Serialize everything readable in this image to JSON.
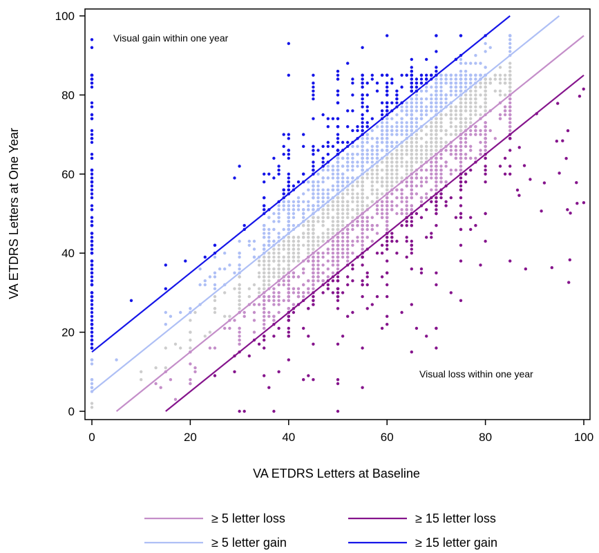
{
  "chart_data": {
    "type": "scatter",
    "xlabel": "VA ETDRS Letters at Baseline",
    "ylabel": "VA ETDRS Letters at One Year",
    "xlim": [
      0,
      100
    ],
    "ylim": [
      0,
      100
    ],
    "xticks": [
      0,
      20,
      40,
      60,
      80,
      100
    ],
    "yticks": [
      0,
      20,
      40,
      60,
      80,
      100
    ],
    "grid": false,
    "legend_position": "bottom",
    "annotations": [
      {
        "text": "Visual gain within one year",
        "x": 9,
        "y": 94
      },
      {
        "text": "Visual loss within one year",
        "x": 66,
        "y": 9
      }
    ],
    "point_groups": [
      {
        "key": "gain15",
        "color": "#1515e8",
        "rule": "change >= 15"
      },
      {
        "key": "gain5",
        "color": "#aebff5",
        "rule": "5 <= change < 15"
      },
      {
        "key": "stable",
        "color": "#cdcdcd",
        "rule": "-5 < change < 5"
      },
      {
        "key": "loss5",
        "color": "#c48ec9",
        "rule": "-15 < change <= -5"
      },
      {
        "key": "loss15",
        "color": "#85148c",
        "rule": "change <= -15"
      }
    ],
    "series": [
      {
        "name": "≥ 5 letter loss",
        "color": "#c48ec9",
        "line": {
          "x": [
            5,
            100
          ],
          "y": [
            0,
            95
          ]
        }
      },
      {
        "name": "≥ 15 letter loss",
        "color": "#85148c",
        "line": {
          "x": [
            15,
            100
          ],
          "y": [
            0,
            85
          ]
        }
      },
      {
        "name": "≥ 5 letter gain",
        "color": "#aebff5",
        "line": {
          "x": [
            0,
            95
          ],
          "y": [
            5,
            100
          ]
        }
      },
      {
        "name": "≥ 15 letter gain",
        "color": "#1515e8",
        "line": {
          "x": [
            0,
            85
          ],
          "y": [
            15,
            100
          ]
        }
      }
    ],
    "legend_order": [
      0,
      1,
      2,
      3
    ]
  }
}
